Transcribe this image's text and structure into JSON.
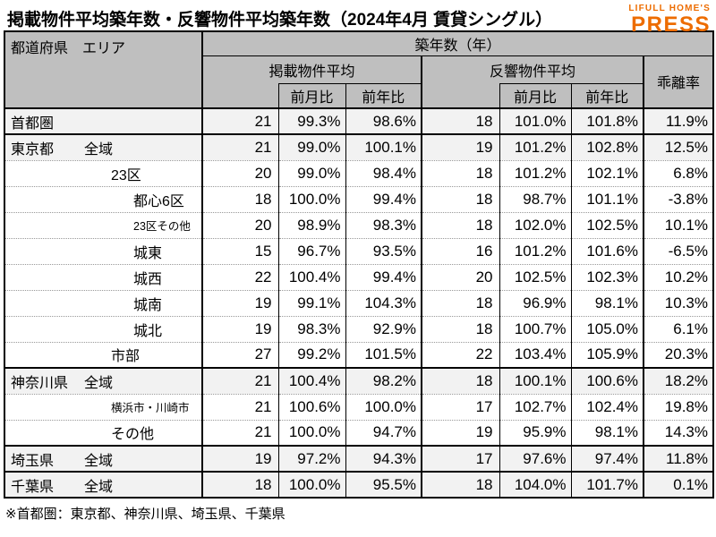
{
  "title": "掲載物件平均築年数・反響物件平均築年数（2024年4月 賃貸シングル）",
  "logo": {
    "line1": "LIFULL HOME'S",
    "line2": "PRESS",
    "color": "#ED6C00"
  },
  "footnote": "※首都圏：東京都、神奈川県、埼玉県、千葉県",
  "colors": {
    "header_bg": "#BFBFBF",
    "summary_row_bg": "#F2F2F2",
    "logo_orange": "#ED6C00"
  },
  "table_header": {
    "col_label": "都道府県　エリア",
    "group_title": "築年数（年）",
    "listed_group": "掲載物件平均",
    "response_group": "反響物件平均",
    "deviation": "乖離率",
    "mom": "前月比",
    "yoy": "前年比"
  },
  "chart_data": {
    "type": "table",
    "title": "掲載物件平均築年数・反響物件平均築年数（2024年4月 賃貸シングル）",
    "columns": [
      "都道府県 エリア",
      "掲載物件平均 築年数(年)",
      "掲載 前月比",
      "掲載 前年比",
      "反響物件平均 築年数(年)",
      "反響 前月比",
      "反響 前年比",
      "乖離率"
    ],
    "rows": [
      {
        "pref": "首都圏",
        "area": "",
        "level": 0,
        "summary": true,
        "thick": true,
        "values": [
          "21",
          "99.3%",
          "98.6%",
          "18",
          "101.0%",
          "101.8%",
          "11.9%"
        ]
      },
      {
        "pref": "東京都",
        "area": "全域",
        "level": 1,
        "summary": true,
        "values": [
          "21",
          "99.0%",
          "100.1%",
          "19",
          "101.2%",
          "102.8%",
          "12.5%"
        ]
      },
      {
        "pref": "",
        "area": "23区",
        "level": 2,
        "values": [
          "20",
          "99.0%",
          "98.4%",
          "18",
          "101.2%",
          "102.1%",
          "6.8%"
        ]
      },
      {
        "pref": "",
        "area": "都心6区",
        "level": 3,
        "values": [
          "18",
          "100.0%",
          "99.4%",
          "18",
          "98.7%",
          "101.1%",
          "-3.8%"
        ]
      },
      {
        "pref": "",
        "area": "23区その他",
        "level": 3,
        "small": true,
        "values": [
          "20",
          "98.9%",
          "98.3%",
          "18",
          "102.0%",
          "102.5%",
          "10.1%"
        ]
      },
      {
        "pref": "",
        "area": "城東",
        "level": 3,
        "values": [
          "15",
          "96.7%",
          "93.5%",
          "16",
          "101.2%",
          "101.6%",
          "-6.5%"
        ]
      },
      {
        "pref": "",
        "area": "城西",
        "level": 3,
        "values": [
          "22",
          "100.4%",
          "99.4%",
          "20",
          "102.5%",
          "102.3%",
          "10.2%"
        ]
      },
      {
        "pref": "",
        "area": "城南",
        "level": 3,
        "values": [
          "19",
          "99.1%",
          "104.3%",
          "18",
          "96.9%",
          "98.1%",
          "10.3%"
        ]
      },
      {
        "pref": "",
        "area": "城北",
        "level": 3,
        "values": [
          "19",
          "98.3%",
          "92.9%",
          "18",
          "100.7%",
          "105.0%",
          "6.1%"
        ]
      },
      {
        "pref": "",
        "area": "市部",
        "level": 2,
        "thick": true,
        "values": [
          "27",
          "99.2%",
          "101.5%",
          "22",
          "103.4%",
          "105.9%",
          "20.3%"
        ]
      },
      {
        "pref": "神奈川県",
        "area": "全域",
        "level": 1,
        "summary": true,
        "values": [
          "21",
          "100.4%",
          "98.2%",
          "18",
          "100.1%",
          "100.6%",
          "18.2%"
        ]
      },
      {
        "pref": "",
        "area": "横浜市・川崎市",
        "level": 2,
        "small": true,
        "values": [
          "21",
          "100.6%",
          "100.0%",
          "17",
          "102.7%",
          "102.4%",
          "19.8%"
        ]
      },
      {
        "pref": "",
        "area": "その他",
        "level": 2,
        "thick": true,
        "values": [
          "21",
          "100.0%",
          "94.7%",
          "19",
          "95.9%",
          "98.1%",
          "14.3%"
        ]
      },
      {
        "pref": "埼玉県",
        "area": "全域",
        "level": 1,
        "summary": true,
        "thick": true,
        "values": [
          "19",
          "97.2%",
          "94.3%",
          "17",
          "97.6%",
          "97.4%",
          "11.8%"
        ]
      },
      {
        "pref": "千葉県",
        "area": "全域",
        "level": 1,
        "summary": true,
        "values": [
          "18",
          "100.0%",
          "95.5%",
          "18",
          "104.0%",
          "101.7%",
          "0.1%"
        ]
      }
    ]
  }
}
